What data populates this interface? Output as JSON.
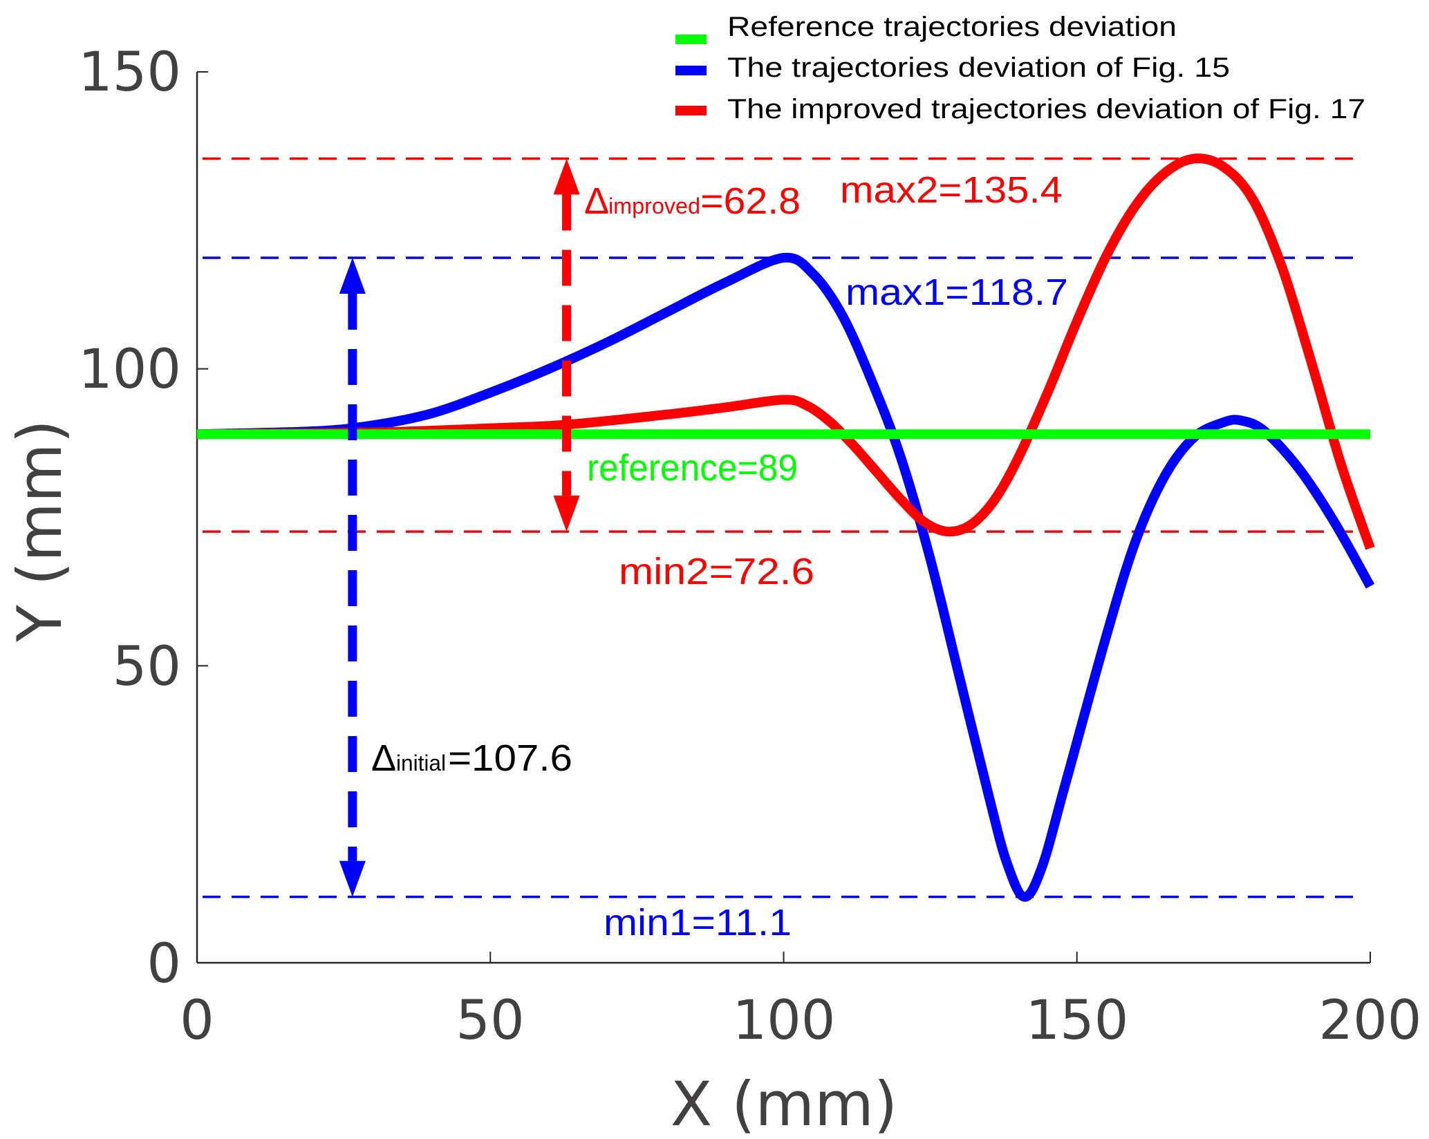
{
  "chart_data": {
    "type": "line",
    "title": "",
    "xlabel": "X (mm)",
    "ylabel": "Y (mm)",
    "xlim": [
      0,
      200
    ],
    "ylim": [
      0,
      150
    ],
    "xticks": [
      0,
      50,
      100,
      150,
      200
    ],
    "yticks": [
      0,
      50,
      100,
      150
    ],
    "xtick_labels": [
      "0",
      "50",
      "100",
      "150",
      "200"
    ],
    "ytick_labels": [
      "0",
      "50",
      "100",
      "150"
    ],
    "grid": false,
    "legend_position": "top-right",
    "series": [
      {
        "name": "Reference trajectories deviation",
        "color": "#00ff00",
        "x": [
          0,
          200
        ],
        "y": [
          89,
          89
        ]
      },
      {
        "name": "The trajectories deviation of Fig. 15",
        "color": "#0000ff",
        "x": [
          0,
          20,
          30,
          40,
          50,
          60,
          70,
          80,
          90,
          100,
          105,
          110,
          115,
          120,
          125,
          130,
          135,
          138,
          141,
          144,
          148,
          155,
          160,
          165,
          170,
          175,
          178,
          182,
          188,
          194,
          200
        ],
        "y": [
          89,
          89.5,
          90.5,
          92.5,
          96,
          100,
          104.5,
          109.5,
          114.5,
          118.7,
          116,
          109,
          98,
          85,
          68,
          48,
          28,
          17,
          11.1,
          16,
          30,
          55,
          71,
          82,
          88.5,
          91,
          91.3,
          89.5,
          83,
          74,
          63.4
        ]
      },
      {
        "name": "The improved trajectories deviation of Fig. 17",
        "color": "#ff0000",
        "x": [
          0,
          30,
          50,
          63,
          80,
          90,
          100,
          104,
          108,
          112,
          116,
          120,
          124,
          128,
          132,
          136,
          140,
          145,
          150,
          155,
          160,
          165,
          170,
          175,
          180,
          185,
          190,
          195,
          200
        ],
        "y": [
          89,
          89.3,
          90,
          90.6,
          92.3,
          93.5,
          94.8,
          93.8,
          91,
          87,
          82.5,
          78,
          74.2,
          72.6,
          73.8,
          78,
          85,
          96,
          108,
          119,
          127.5,
          133,
          135.4,
          134,
          128.5,
          117,
          101,
          84,
          69.8
        ]
      }
    ],
    "reference_lines": [
      {
        "name": "max2",
        "value": 135.4,
        "color": "#ff0000",
        "label": "max2=135.4"
      },
      {
        "name": "max1",
        "value": 118.7,
        "color": "#0000ff",
        "label": "max1=118.7"
      },
      {
        "name": "min2",
        "value": 72.6,
        "color": "#ff0000",
        "label": "min2=72.6"
      },
      {
        "name": "min1",
        "value": 11.1,
        "color": "#0000ff",
        "label": "min1=11.1"
      }
    ],
    "reference_label": {
      "text": "reference=89",
      "color": "#00ff00"
    },
    "delta_annotations": [
      {
        "name": "improved",
        "symbol": "Δ",
        "subscript": "improved",
        "value_text": "=62.8",
        "x": 63,
        "from": 72.6,
        "to": 135.4,
        "color": "#ff0000"
      },
      {
        "name": "initial",
        "symbol": "Δ",
        "subscript": "initial",
        "value_text": "=107.6",
        "x": 26.5,
        "from": 11.1,
        "to": 118.7,
        "color": "#0000ff",
        "text_color": "#000000"
      }
    ]
  }
}
